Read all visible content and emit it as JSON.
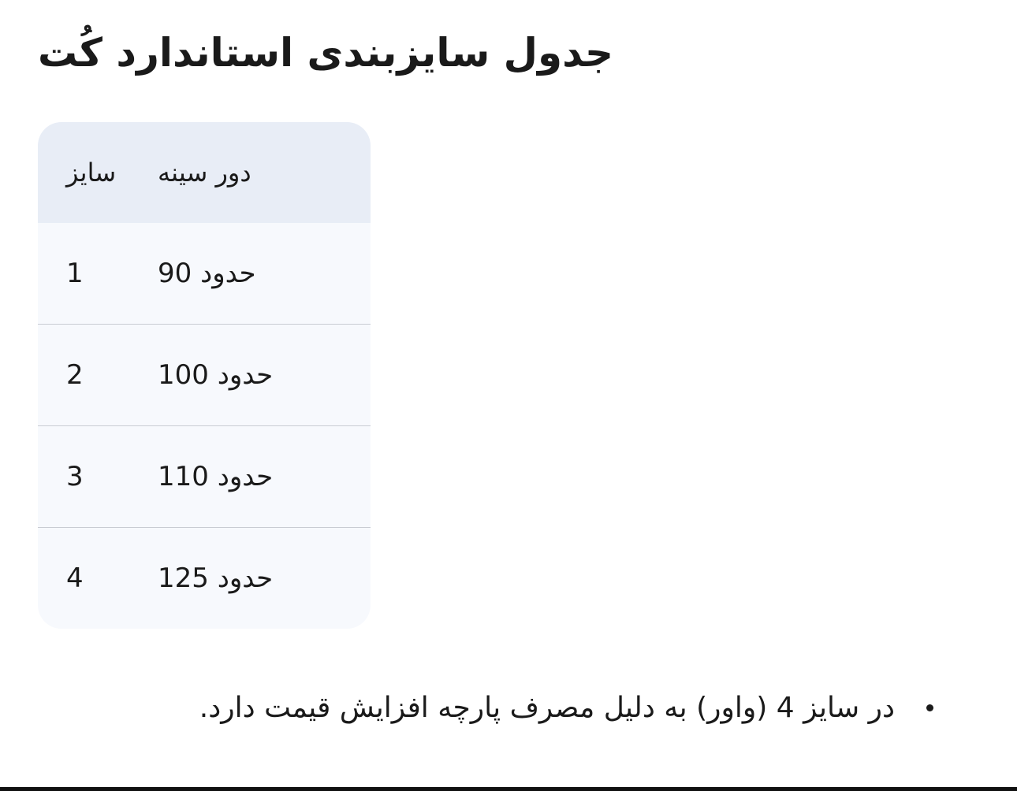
{
  "title": "جدول سایزبندی استاندارد کُت",
  "table": {
    "headers": [
      "سایز",
      "دور سینه"
    ],
    "rows": [
      [
        "1",
        "حدود 90"
      ],
      [
        "2",
        "حدود 100"
      ],
      [
        "3",
        "حدود 110"
      ],
      [
        "4",
        "حدود 125"
      ]
    ]
  },
  "notes": [
    "در سایز 4 (واور) به دلیل مصرف پارچه افزایش قیمت دارد."
  ]
}
